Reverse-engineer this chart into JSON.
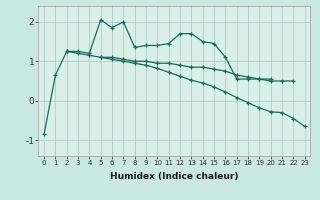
{
  "title": "",
  "xlabel": "Humidex (Indice chaleur)",
  "ylabel": "",
  "background_color": "#c8e8e0",
  "plot_bg_color": "#d8f0e8",
  "grid_color": "#b0ccc8",
  "line_color": "#1a6b5a",
  "xlim": [
    -0.5,
    23.5
  ],
  "ylim": [
    -1.4,
    2.4
  ],
  "yticks": [
    -1,
    0,
    1,
    2
  ],
  "xticks": [
    0,
    1,
    2,
    3,
    4,
    5,
    6,
    7,
    8,
    9,
    10,
    11,
    12,
    13,
    14,
    15,
    16,
    17,
    18,
    19,
    20,
    21,
    22,
    23
  ],
  "series": [
    {
      "x": [
        0,
        1,
        2,
        3,
        4,
        5,
        6,
        7,
        8,
        9,
        10,
        11,
        12,
        13,
        14,
        15,
        16,
        17,
        18,
        19,
        20
      ],
      "y": [
        -0.85,
        0.65,
        1.25,
        1.25,
        1.2,
        2.05,
        1.85,
        2.0,
        1.35,
        1.4,
        1.4,
        1.45,
        1.7,
        1.7,
        1.5,
        1.45,
        1.1,
        0.55,
        0.55,
        0.55,
        0.55
      ]
    },
    {
      "x": [
        2,
        3,
        4,
        5,
        6,
        7,
        8,
        9,
        10,
        11,
        12,
        13,
        14,
        15,
        16,
        17,
        18,
        19,
        20,
        21,
        22
      ],
      "y": [
        1.25,
        1.2,
        1.15,
        1.1,
        1.1,
        1.05,
        1.0,
        1.0,
        0.95,
        0.95,
        0.9,
        0.85,
        0.85,
        0.8,
        0.75,
        0.65,
        0.6,
        0.55,
        0.5,
        0.5,
        0.5
      ]
    },
    {
      "x": [
        5,
        6,
        7,
        8,
        9,
        10,
        11,
        12,
        13,
        14,
        15,
        16,
        17,
        18,
        19,
        20,
        21,
        22,
        23
      ],
      "y": [
        1.1,
        1.05,
        1.0,
        0.95,
        0.9,
        0.82,
        0.72,
        0.62,
        0.52,
        0.45,
        0.35,
        0.22,
        0.08,
        -0.05,
        -0.18,
        -0.28,
        -0.3,
        -0.45,
        -0.65
      ]
    }
  ]
}
